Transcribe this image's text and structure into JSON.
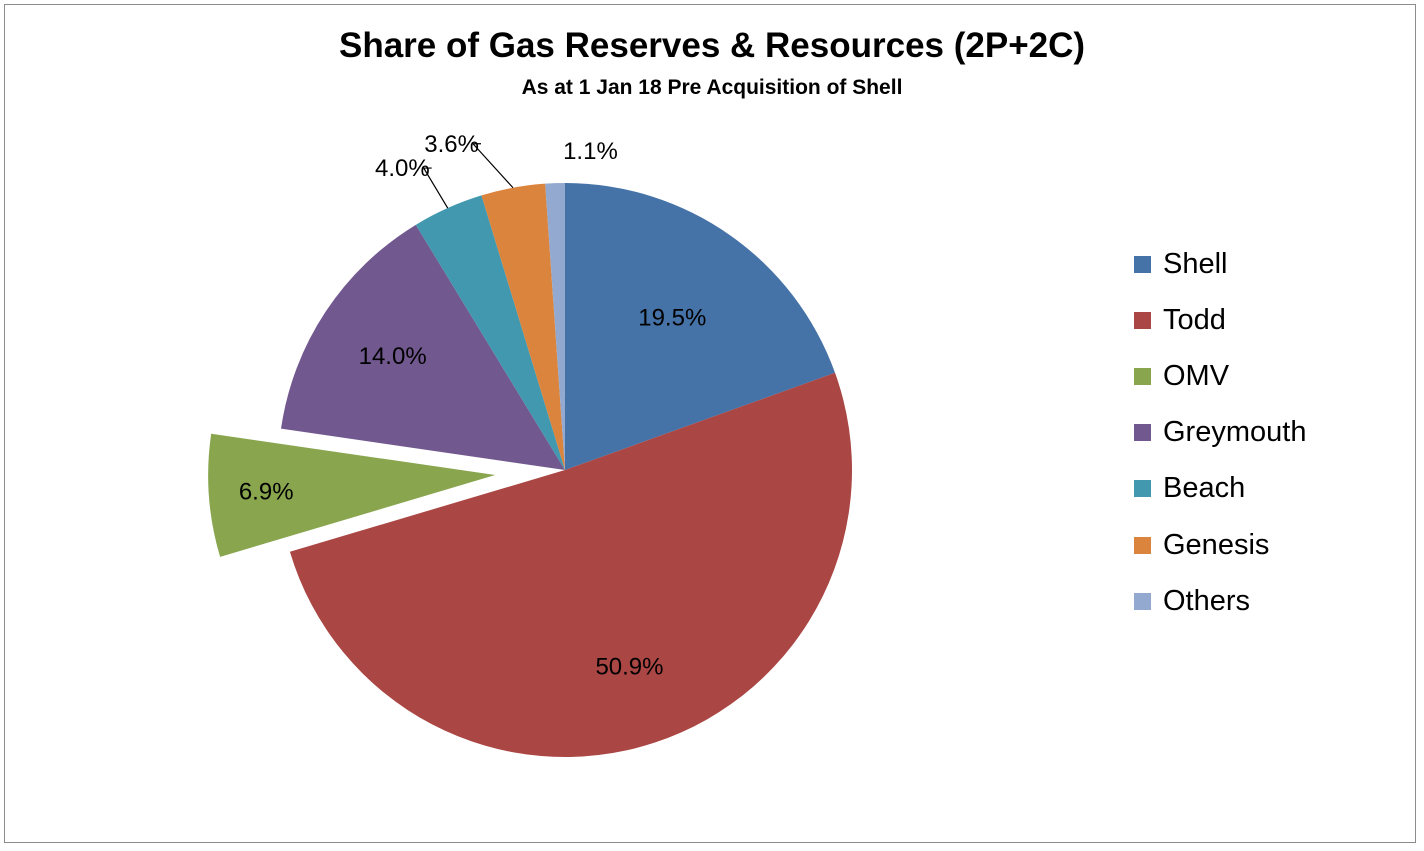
{
  "chart_data": {
    "type": "pie",
    "title": "Share of Gas Reserves & Resources (2P+2C)",
    "subtitle": "As at 1 Jan 18  Pre Acquisition of Shell",
    "slices": [
      {
        "name": "Shell",
        "value": 19.5,
        "label": "19.5%",
        "color": "#4572A7",
        "exploded": false
      },
      {
        "name": "Todd",
        "value": 50.9,
        "label": "50.9%",
        "color": "#AA4643",
        "exploded": false
      },
      {
        "name": "OMV",
        "value": 6.9,
        "label": "6.9%",
        "color": "#89A54E",
        "exploded": true
      },
      {
        "name": "Greymouth",
        "value": 14.0,
        "label": "14.0%",
        "color": "#71588F",
        "exploded": false
      },
      {
        "name": "Beach",
        "value": 4.0,
        "label": "4.0%",
        "color": "#4198AF",
        "exploded": false
      },
      {
        "name": "Genesis",
        "value": 3.6,
        "label": "3.6%",
        "color": "#DB843D",
        "exploded": false
      },
      {
        "name": "Others",
        "value": 1.1,
        "label": "1.1%",
        "color": "#93A9CF",
        "exploded": false
      }
    ],
    "legend_position": "right"
  }
}
